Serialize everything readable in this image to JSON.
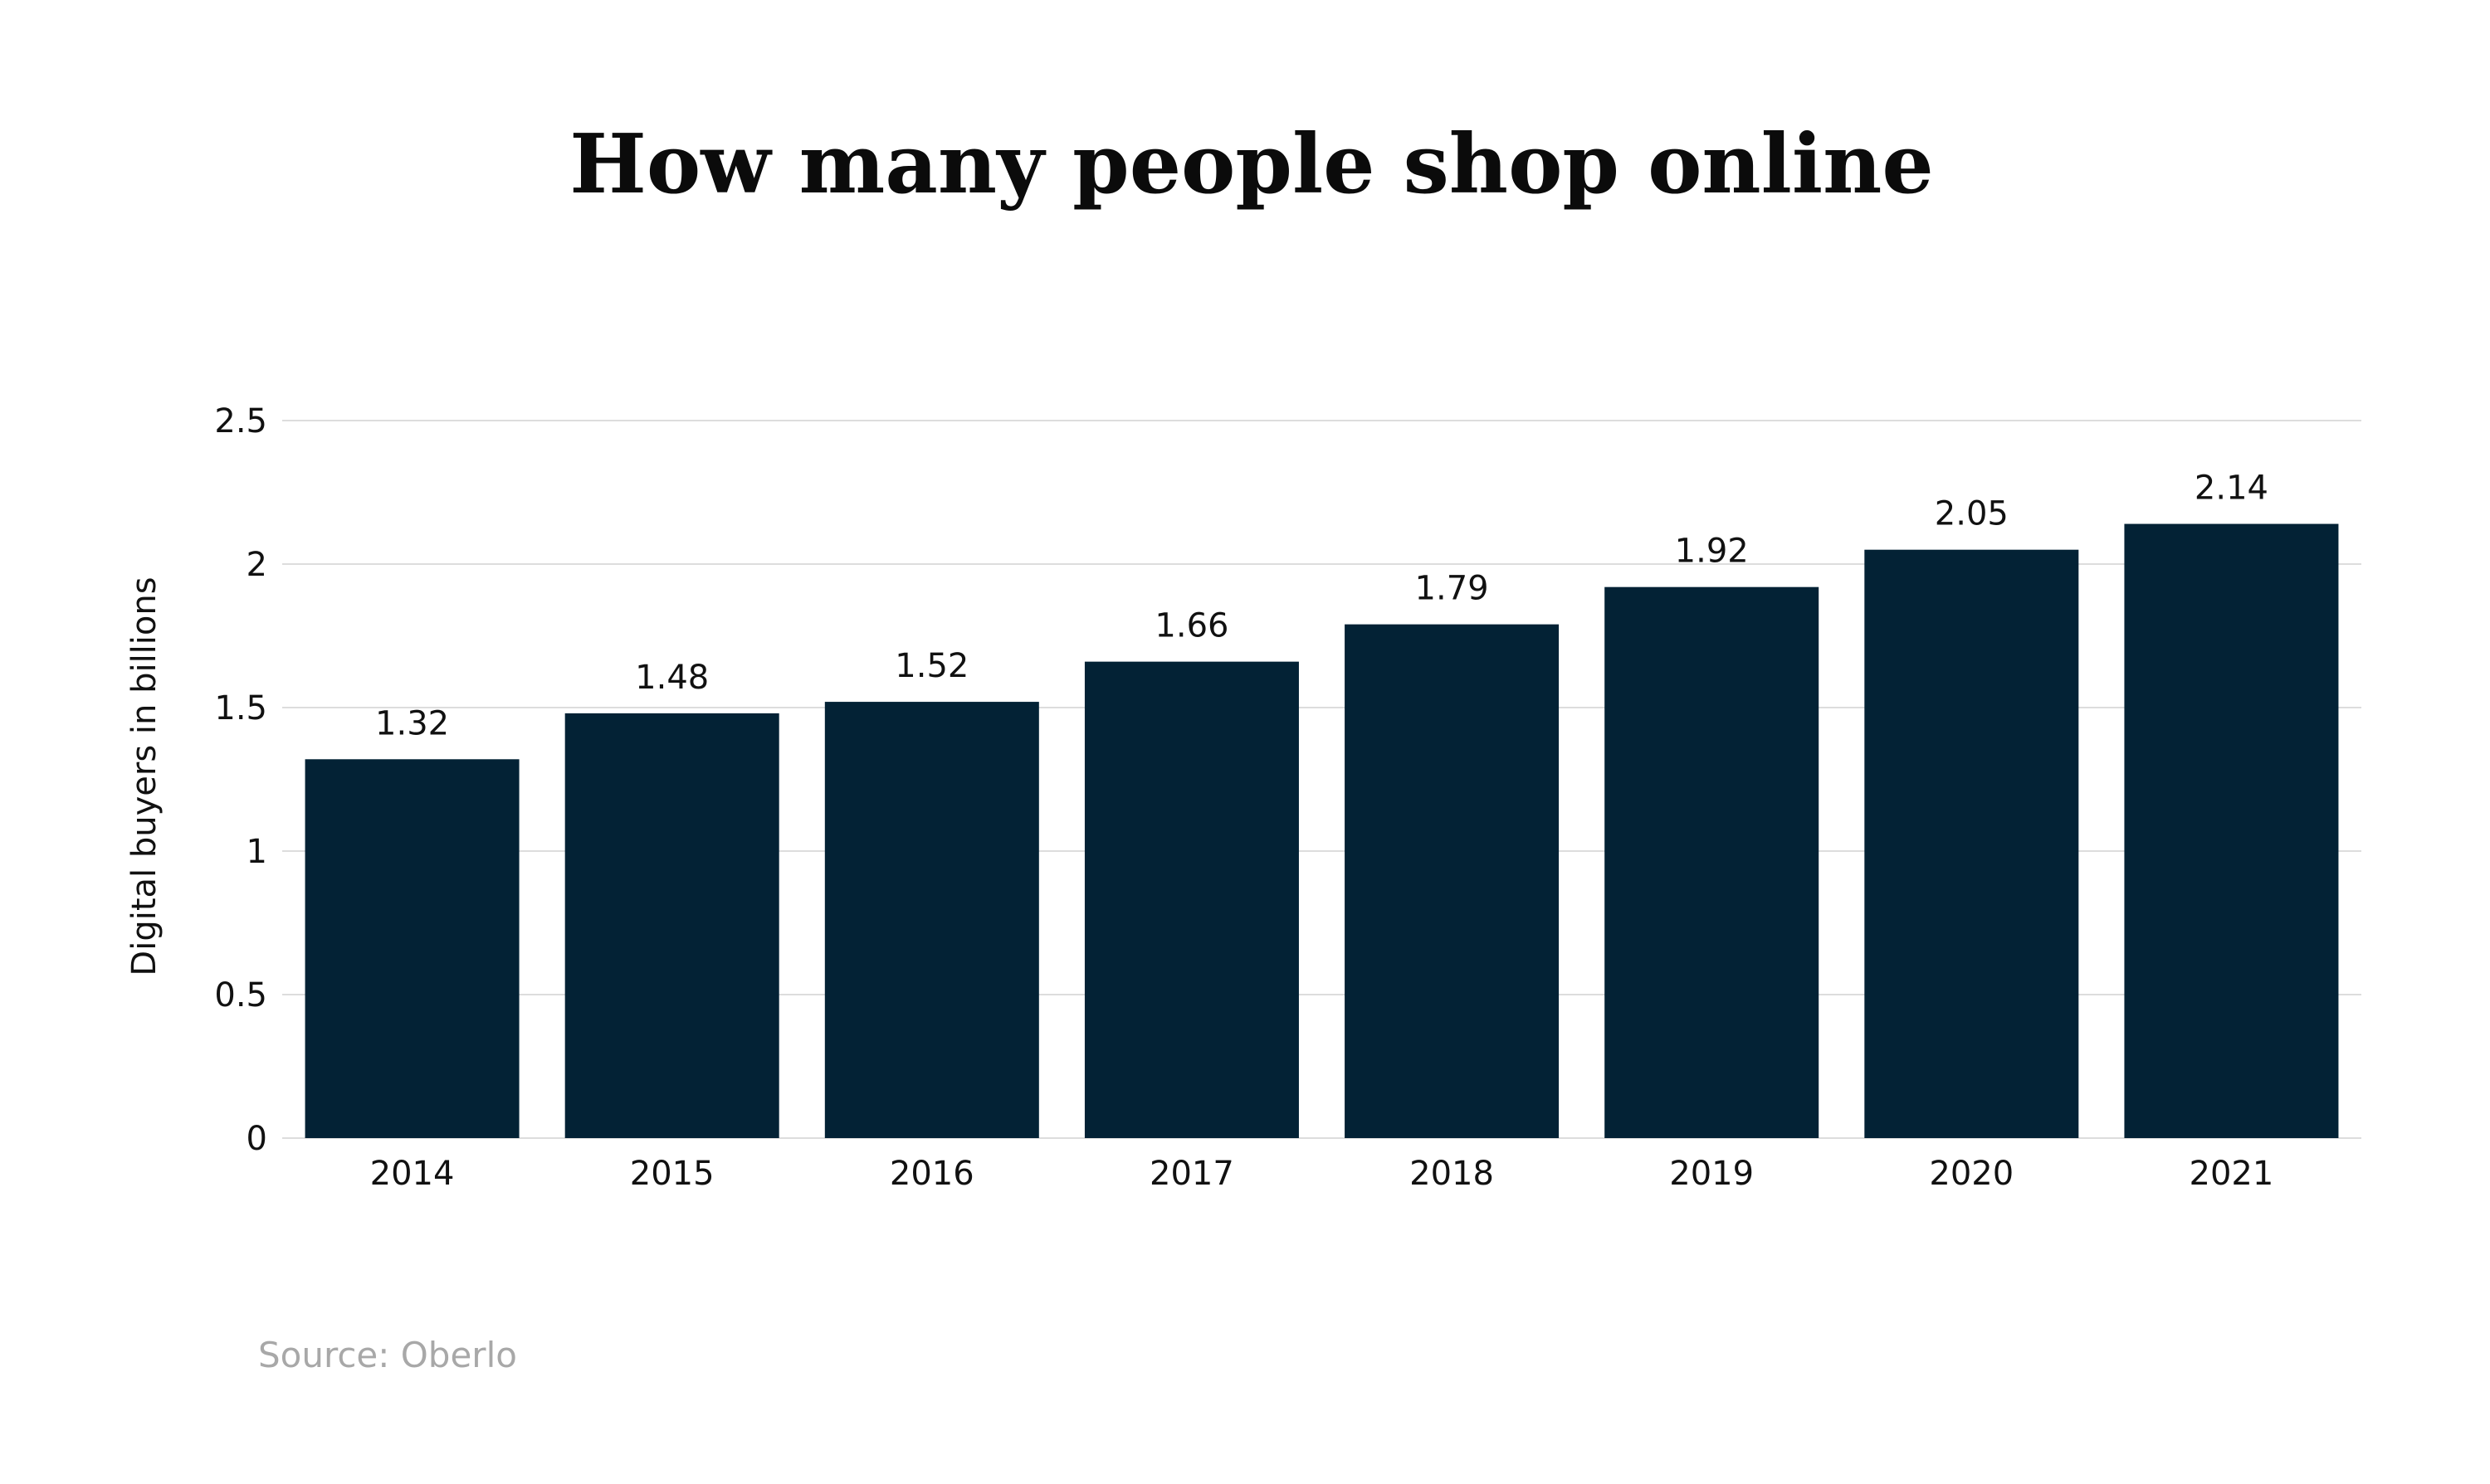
{
  "chart_data": {
    "type": "bar",
    "title": "How many people shop online",
    "ylabel": "Digital buyers in billions",
    "xlabel": "",
    "categories": [
      "2014",
      "2015",
      "2016",
      "2017",
      "2018",
      "2019",
      "2020",
      "2021"
    ],
    "values": [
      1.32,
      1.48,
      1.52,
      1.66,
      1.79,
      1.92,
      2.05,
      2.14
    ],
    "value_labels": [
      "1.32",
      "1.48",
      "1.52",
      "1.66",
      "1.79",
      "1.92",
      "2.05",
      "2.14"
    ],
    "ylim": [
      0,
      2.5
    ],
    "yticks": [
      "0",
      "0.5",
      "1",
      "1.5",
      "2",
      "2.5"
    ],
    "grid": true,
    "legend": "none",
    "source": "Source: Oberlo",
    "colors": {
      "bar": "#032235",
      "grid": "#dddddd",
      "text": "#111111",
      "source": "#a8a8a8"
    }
  }
}
